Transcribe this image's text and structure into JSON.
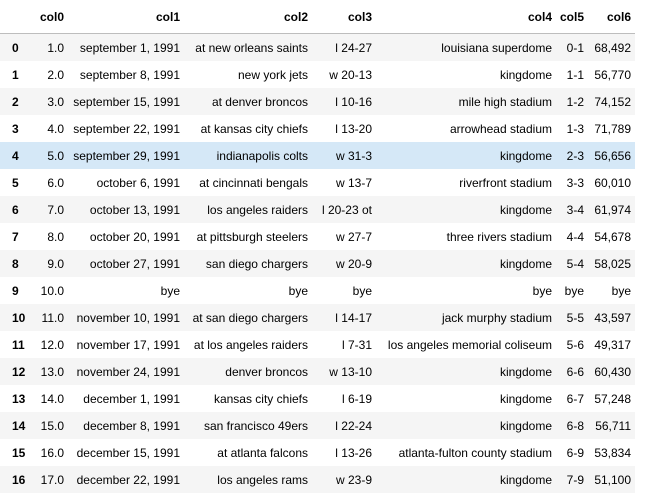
{
  "table": {
    "columns": [
      "col0",
      "col1",
      "col2",
      "col3",
      "col4",
      "col5",
      "col6"
    ],
    "highlighted_row": 4,
    "rows": [
      {
        "index": "0",
        "cells": [
          "1.0",
          "september 1, 1991",
          "at new orleans saints",
          "l 24-27",
          "louisiana superdome",
          "0-1",
          "68,492"
        ]
      },
      {
        "index": "1",
        "cells": [
          "2.0",
          "september 8, 1991",
          "new york jets",
          "w 20-13",
          "kingdome",
          "1-1",
          "56,770"
        ]
      },
      {
        "index": "2",
        "cells": [
          "3.0",
          "september 15, 1991",
          "at denver broncos",
          "l 10-16",
          "mile high stadium",
          "1-2",
          "74,152"
        ]
      },
      {
        "index": "3",
        "cells": [
          "4.0",
          "september 22, 1991",
          "at kansas city chiefs",
          "l 13-20",
          "arrowhead stadium",
          "1-3",
          "71,789"
        ]
      },
      {
        "index": "4",
        "cells": [
          "5.0",
          "september 29, 1991",
          "indianapolis colts",
          "w 31-3",
          "kingdome",
          "2-3",
          "56,656"
        ]
      },
      {
        "index": "5",
        "cells": [
          "6.0",
          "october 6, 1991",
          "at cincinnati bengals",
          "w 13-7",
          "riverfront stadium",
          "3-3",
          "60,010"
        ]
      },
      {
        "index": "6",
        "cells": [
          "7.0",
          "october 13, 1991",
          "los angeles raiders",
          "l 20-23 ot",
          "kingdome",
          "3-4",
          "61,974"
        ]
      },
      {
        "index": "7",
        "cells": [
          "8.0",
          "october 20, 1991",
          "at pittsburgh steelers",
          "w 27-7",
          "three rivers stadium",
          "4-4",
          "54,678"
        ]
      },
      {
        "index": "8",
        "cells": [
          "9.0",
          "october 27, 1991",
          "san diego chargers",
          "w 20-9",
          "kingdome",
          "5-4",
          "58,025"
        ]
      },
      {
        "index": "9",
        "cells": [
          "10.0",
          "bye",
          "bye",
          "bye",
          "bye",
          "bye",
          "bye"
        ]
      },
      {
        "index": "10",
        "cells": [
          "11.0",
          "november 10, 1991",
          "at san diego chargers",
          "l 14-17",
          "jack murphy stadium",
          "5-5",
          "43,597"
        ]
      },
      {
        "index": "11",
        "cells": [
          "12.0",
          "november 17, 1991",
          "at los angeles raiders",
          "l 7-31",
          "los angeles memorial coliseum",
          "5-6",
          "49,317"
        ]
      },
      {
        "index": "12",
        "cells": [
          "13.0",
          "november 24, 1991",
          "denver broncos",
          "w 13-10",
          "kingdome",
          "6-6",
          "60,430"
        ]
      },
      {
        "index": "13",
        "cells": [
          "14.0",
          "december 1, 1991",
          "kansas city chiefs",
          "l 6-19",
          "kingdome",
          "6-7",
          "57,248"
        ]
      },
      {
        "index": "14",
        "cells": [
          "15.0",
          "december 8, 1991",
          "san francisco 49ers",
          "l 22-24",
          "kingdome",
          "6-8",
          "56,711"
        ]
      },
      {
        "index": "15",
        "cells": [
          "16.0",
          "december 15, 1991",
          "at atlanta falcons",
          "l 13-26",
          "atlanta-fulton county stadium",
          "6-9",
          "53,834"
        ]
      },
      {
        "index": "16",
        "cells": [
          "17.0",
          "december 22, 1991",
          "los angeles rams",
          "w 23-9",
          "kingdome",
          "7-9",
          "51,100"
        ]
      }
    ]
  }
}
